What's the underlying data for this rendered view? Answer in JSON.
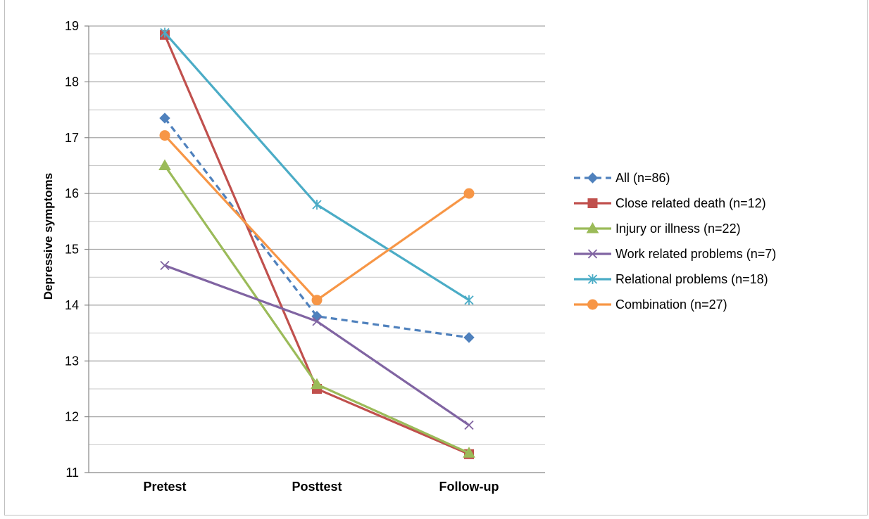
{
  "chart_data": {
    "type": "line",
    "title": "",
    "xlabel": "",
    "ylabel": "Depressive symptoms",
    "categories": [
      "Pretest",
      "Posttest",
      "Follow-up"
    ],
    "ylim": [
      11,
      19
    ],
    "y_ticks": [
      11,
      12,
      13,
      14,
      15,
      16,
      17,
      18,
      19
    ],
    "grid": true,
    "minor_grid": true,
    "legend_position": "right",
    "series": [
      {
        "name": "All (n=86)",
        "values": [
          17.35,
          13.8,
          13.42
        ],
        "color": "#4f81bd",
        "marker": "diamond",
        "dashed": true
      },
      {
        "name": "Close related death (n=12)",
        "values": [
          18.84,
          12.5,
          11.33
        ],
        "color": "#c0504d",
        "marker": "square",
        "dashed": false
      },
      {
        "name": "Injury or illness (n=22)",
        "values": [
          16.5,
          12.58,
          11.35
        ],
        "color": "#9bbb59",
        "marker": "triangle",
        "dashed": false
      },
      {
        "name": "Work related problems (n=7)",
        "values": [
          14.71,
          13.71,
          11.85
        ],
        "color": "#8064a2",
        "marker": "x",
        "dashed": false
      },
      {
        "name": "Relational problems (n=18)",
        "values": [
          18.88,
          15.8,
          14.09
        ],
        "color": "#4bacc6",
        "marker": "star",
        "dashed": false
      },
      {
        "name": "Combination (n=27)",
        "values": [
          17.04,
          14.09,
          16.0
        ],
        "color": "#f79646",
        "marker": "circle",
        "dashed": false
      }
    ]
  }
}
